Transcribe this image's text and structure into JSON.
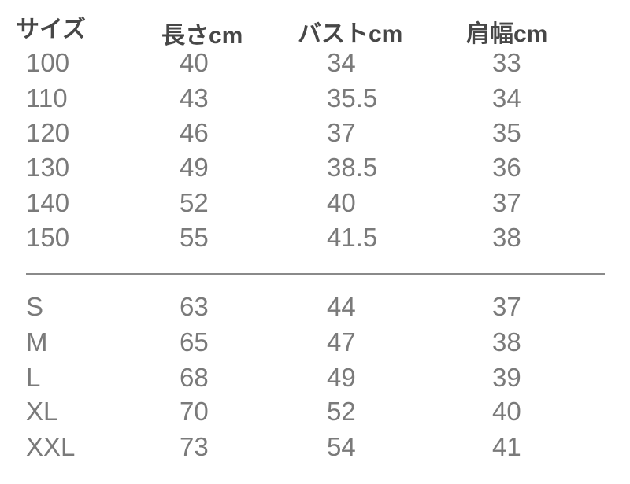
{
  "headers": [
    "サイズ",
    "長さcm",
    "バストcm",
    "肩幅cm"
  ],
  "kids_rows": [
    [
      "100",
      "40",
      "34",
      "33"
    ],
    [
      "110",
      "43",
      "35.5",
      "34"
    ],
    [
      "120",
      "46",
      "37",
      "35"
    ],
    [
      "130",
      "49",
      "38.5",
      "36"
    ],
    [
      "140",
      "52",
      "40",
      "37"
    ],
    [
      "150",
      "55",
      "41.5",
      "38"
    ]
  ],
  "adult_rows": [
    [
      "S",
      "63",
      "44",
      "37"
    ],
    [
      "M",
      "65",
      "47",
      "38"
    ],
    [
      "L",
      "68",
      "49",
      "39"
    ],
    [
      "XL",
      "70",
      "52",
      "40"
    ],
    [
      "XXL",
      "73",
      "54",
      "41"
    ]
  ]
}
